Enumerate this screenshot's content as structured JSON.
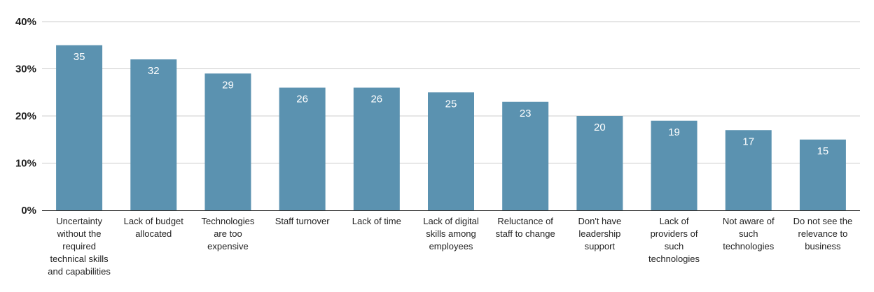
{
  "chart_data": {
    "type": "bar",
    "title": "",
    "xlabel": "",
    "ylabel": "",
    "ylim": [
      0,
      40
    ],
    "yticks": [
      0,
      10,
      20,
      30,
      40
    ],
    "ytick_labels": [
      "0%",
      "10%",
      "20%",
      "30%",
      "40%"
    ],
    "grid": true,
    "legend": "none",
    "bar_color": "#5b92b0",
    "categories": [
      "Uncertainty without the required technical skills and capabilities",
      "Lack of budget allocated",
      "Technologies are too expensive",
      "Staff turnover",
      "Lack of time",
      "Lack of digital skills among employees",
      "Reluctance of staff to change",
      "Don't have leadership support",
      "Lack of providers of such technologies",
      "Not aware of such technologies",
      "Do not see the relevance to business"
    ],
    "values": [
      35,
      32,
      29,
      26,
      26,
      25,
      23,
      20,
      19,
      17,
      15
    ],
    "data_labels": [
      "35",
      "32",
      "29",
      "26",
      "26",
      "25",
      "23",
      "20",
      "19",
      "17",
      "15"
    ]
  }
}
